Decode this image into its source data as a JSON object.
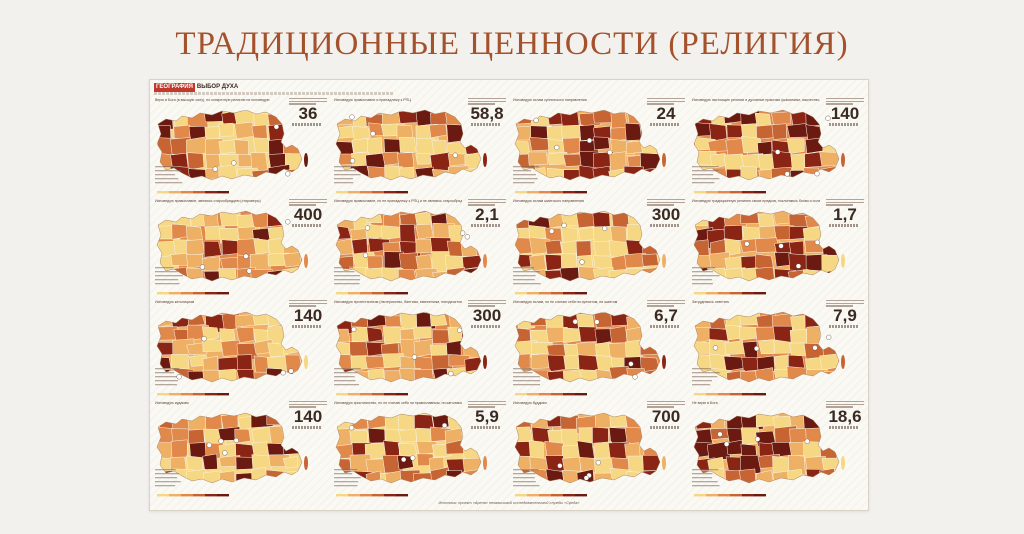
{
  "slide": {
    "title": "ТРАДИЦИОННЫЕ ЦЕННОСТИ (РЕЛИГИЯ)"
  },
  "poster": {
    "header_label": "ГЕОГРАФИЯ",
    "header_title": "ВЫБОР ДУХА",
    "source": "Источник: проект «Арена» независимой исследовательской службы «Среда»"
  },
  "colors": {
    "light": "#f6d783",
    "mid_light": "#eeb064",
    "mid": "#e0894a",
    "mid_dark": "#c66434",
    "dark": "#8a2516",
    "darkest": "#6a1a10"
  },
  "panels": [
    {
      "title": "Верю в Бога (в высшую силу), но конкретную религию не исповедую",
      "value": "36"
    },
    {
      "title": "Исповедую православие и принадлежу к РПЦ",
      "value": "58,8"
    },
    {
      "title": "Исповедую ислам суннитского направления",
      "value": "24"
    },
    {
      "title": "Исповедую настоящие религии и духовные практики (шаманизм, язычество, другие направления)",
      "value": "140"
    },
    {
      "title": "Исповедую православие, являюсь старообрядцем (староверы)",
      "value": "400"
    },
    {
      "title": "Исповедую православие, но не принадлежу к РПЦ и не являюсь старообрядцем",
      "value": "2,1"
    },
    {
      "title": "Исповедую ислам шиитского направления",
      "value": "300"
    },
    {
      "title": "Исповедую традиционную религию своих предков, поклоняюсь богам и силам природы",
      "value": "1,7"
    },
    {
      "title": "Исповедую католицизм",
      "value": "140"
    },
    {
      "title": "Исповедую протестантизм (лютеранство, баптизм, евангелизм, пятидесятничество)",
      "value": "300"
    },
    {
      "title": "Исповедую ислам, но не считаю себя ни суннитом, ни шиитом",
      "value": "6,7"
    },
    {
      "title": "Затрудняюсь ответить",
      "value": "7,9"
    },
    {
      "title": "Исповедую иудаизм",
      "value": "140"
    },
    {
      "title": "Исповедую христианство, но не считаю себя ни православным, ни католиком, ни протестантом",
      "value": "5,9"
    },
    {
      "title": "Исповедую буддизм",
      "value": "700"
    },
    {
      "title": "Не верю в Бога",
      "value": "18,6"
    }
  ]
}
